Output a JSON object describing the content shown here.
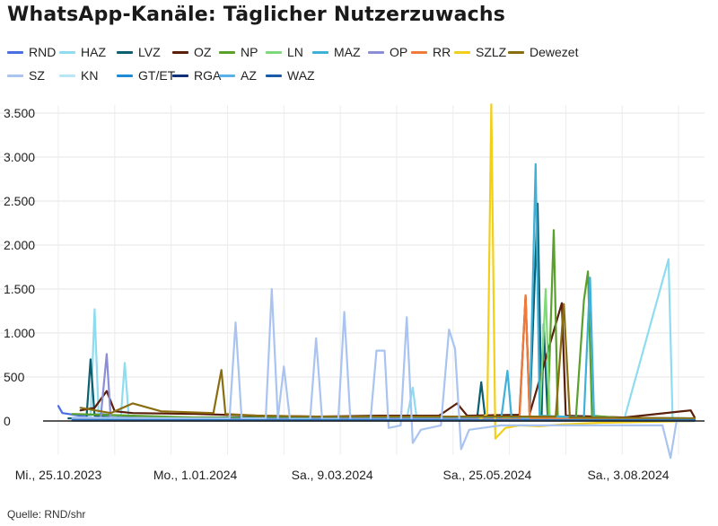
{
  "title": "WhatsApp-Kanäle: Täglicher Nutzerzuwachs",
  "source": "Quelle: RND/shr",
  "chart_data": {
    "type": "line",
    "title": "WhatsApp-Kanäle: Täglicher Nutzerzuwachs",
    "xlabel": "",
    "ylabel": "",
    "x_range": [
      "2023-10-25",
      "2024-09-05"
    ],
    "ylim": [
      -300,
      3600
    ],
    "y_ticks": [
      0,
      500,
      1000,
      1500,
      2000,
      2500,
      3000,
      3500
    ],
    "y_tick_labels": [
      "0",
      "500",
      "1.000",
      "1.500",
      "2.000",
      "2.500",
      "3.000",
      "3.500"
    ],
    "x_ticks": [
      "2023-10-25",
      "2024-01-01",
      "2024-03-09",
      "2024-05-25",
      "2024-08-03"
    ],
    "x_tick_labels": [
      "Mi., 25.10.2023",
      "Mo., 1.01.2024",
      "Sa., 9.03.2024",
      "Sa., 25.05.2024",
      "Sa., 3.08.2024"
    ],
    "grid": true,
    "legend": "top",
    "series": [
      {
        "name": "RND",
        "color": "#4a6fe3",
        "points": [
          [
            "2023-10-25",
            170
          ],
          [
            "2023-10-27",
            90
          ],
          [
            "2023-11-05",
            60
          ],
          [
            "2023-11-15",
            80
          ],
          [
            "2023-12-01",
            40
          ],
          [
            "2024-01-01",
            30
          ],
          [
            "2024-02-01",
            20
          ],
          [
            "2024-03-01",
            15
          ],
          [
            "2024-04-01",
            10
          ],
          [
            "2024-05-01",
            10
          ],
          [
            "2024-06-01",
            10
          ],
          [
            "2024-07-01",
            8
          ],
          [
            "2024-08-01",
            8
          ],
          [
            "2024-09-05",
            5
          ]
        ]
      },
      {
        "name": "HAZ",
        "color": "#8fdcf0",
        "points": [
          [
            "2023-11-01",
            20
          ],
          [
            "2023-11-10",
            30
          ],
          [
            "2023-11-12",
            1270
          ],
          [
            "2023-11-14",
            60
          ],
          [
            "2023-11-25",
            40
          ],
          [
            "2023-11-27",
            660
          ],
          [
            "2023-11-29",
            40
          ],
          [
            "2024-01-01",
            30
          ],
          [
            "2024-04-15",
            20
          ],
          [
            "2024-04-18",
            380
          ],
          [
            "2024-04-20",
            20
          ],
          [
            "2024-06-01",
            20
          ],
          [
            "2024-08-01",
            20
          ],
          [
            "2024-08-23",
            1840
          ],
          [
            "2024-08-25",
            30
          ],
          [
            "2024-09-05",
            20
          ]
        ]
      },
      {
        "name": "LVZ",
        "color": "#0b5f6e",
        "points": [
          [
            "2023-10-30",
            30
          ],
          [
            "2023-11-08",
            40
          ],
          [
            "2023-11-10",
            700
          ],
          [
            "2023-11-12",
            60
          ],
          [
            "2023-11-20",
            40
          ],
          [
            "2024-01-01",
            40
          ],
          [
            "2024-05-20",
            40
          ],
          [
            "2024-05-22",
            440
          ],
          [
            "2024-05-24",
            30
          ],
          [
            "2024-06-15",
            50
          ],
          [
            "2024-06-19",
            2470
          ],
          [
            "2024-06-21",
            60
          ],
          [
            "2024-06-22",
            1100
          ],
          [
            "2024-06-24",
            40
          ],
          [
            "2024-09-05",
            30
          ]
        ]
      },
      {
        "name": "OZ",
        "color": "#5a1f0a",
        "points": [
          [
            "2023-11-05",
            120
          ],
          [
            "2023-11-12",
            150
          ],
          [
            "2023-11-18",
            340
          ],
          [
            "2023-11-22",
            110
          ],
          [
            "2023-12-01",
            90
          ],
          [
            "2024-01-01",
            80
          ],
          [
            "2024-02-01",
            60
          ],
          [
            "2024-03-01",
            50
          ],
          [
            "2024-04-01",
            60
          ],
          [
            "2024-05-01",
            60
          ],
          [
            "2024-05-10",
            200
          ],
          [
            "2024-05-15",
            60
          ],
          [
            "2024-06-10",
            70
          ],
          [
            "2024-06-13",
            1420
          ],
          [
            "2024-06-15",
            80
          ],
          [
            "2024-07-01",
            1340
          ],
          [
            "2024-07-03",
            60
          ],
          [
            "2024-08-01",
            40
          ],
          [
            "2024-09-03",
            120
          ],
          [
            "2024-09-05",
            40
          ]
        ]
      },
      {
        "name": "NP",
        "color": "#5aa02c",
        "points": [
          [
            "2023-11-01",
            80
          ],
          [
            "2023-12-01",
            60
          ],
          [
            "2024-01-01",
            40
          ],
          [
            "2024-03-01",
            30
          ],
          [
            "2024-05-01",
            30
          ],
          [
            "2024-06-24",
            40
          ],
          [
            "2024-06-27",
            2170
          ],
          [
            "2024-06-29",
            50
          ],
          [
            "2024-07-08",
            40
          ],
          [
            "2024-07-12",
            1370
          ],
          [
            "2024-07-14",
            1700
          ],
          [
            "2024-07-16",
            60
          ],
          [
            "2024-08-01",
            30
          ],
          [
            "2024-09-05",
            20
          ]
        ]
      },
      {
        "name": "LN",
        "color": "#7fd87a",
        "points": [
          [
            "2023-11-01",
            30
          ],
          [
            "2024-01-01",
            20
          ],
          [
            "2024-06-20",
            30
          ],
          [
            "2024-06-23",
            1500
          ],
          [
            "2024-06-25",
            40
          ],
          [
            "2024-09-05",
            20
          ]
        ]
      },
      {
        "name": "MAZ",
        "color": "#3fb0d8",
        "points": [
          [
            "2023-11-01",
            20
          ],
          [
            "2024-01-01",
            20
          ],
          [
            "2024-06-01",
            40
          ],
          [
            "2024-06-04",
            570
          ],
          [
            "2024-06-06",
            40
          ],
          [
            "2024-06-15",
            50
          ],
          [
            "2024-06-18",
            2920
          ],
          [
            "2024-06-20",
            60
          ],
          [
            "2024-07-12",
            40
          ],
          [
            "2024-07-15",
            1630
          ],
          [
            "2024-07-17",
            40
          ],
          [
            "2024-09-05",
            20
          ]
        ]
      },
      {
        "name": "OP",
        "color": "#8a8ed6",
        "points": [
          [
            "2023-11-01",
            20
          ],
          [
            "2023-11-15",
            30
          ],
          [
            "2023-11-18",
            760
          ],
          [
            "2023-11-20",
            40
          ],
          [
            "2024-01-01",
            20
          ],
          [
            "2024-09-05",
            20
          ]
        ]
      },
      {
        "name": "RR",
        "color": "#f07a3a",
        "points": [
          [
            "2024-05-01",
            10
          ],
          [
            "2024-06-10",
            20
          ],
          [
            "2024-06-13",
            1430
          ],
          [
            "2024-06-15",
            30
          ],
          [
            "2024-09-05",
            10
          ]
        ]
      },
      {
        "name": "SZLZ",
        "color": "#f2cf1a",
        "points": [
          [
            "2024-05-20",
            0
          ],
          [
            "2024-05-25",
            80
          ],
          [
            "2024-05-27",
            3600
          ],
          [
            "2024-05-29",
            -200
          ],
          [
            "2024-06-03",
            -80
          ],
          [
            "2024-06-10",
            -50
          ],
          [
            "2024-06-20",
            -60
          ],
          [
            "2024-07-01",
            -40
          ],
          [
            "2024-07-20",
            -20
          ],
          [
            "2024-09-05",
            0
          ]
        ]
      },
      {
        "name": "Dewezet",
        "color": "#8a6d0f",
        "points": [
          [
            "2023-11-05",
            150
          ],
          [
            "2023-11-20",
            90
          ],
          [
            "2023-12-01",
            200
          ],
          [
            "2023-12-15",
            110
          ],
          [
            "2024-01-10",
            90
          ],
          [
            "2024-01-14",
            580
          ],
          [
            "2024-01-16",
            80
          ],
          [
            "2024-02-01",
            60
          ],
          [
            "2024-03-01",
            50
          ],
          [
            "2024-05-01",
            50
          ],
          [
            "2024-06-28",
            50
          ],
          [
            "2024-07-02",
            1330
          ],
          [
            "2024-07-05",
            40
          ],
          [
            "2024-09-05",
            30
          ]
        ]
      },
      {
        "name": "SZ",
        "color": "#a9c4f0",
        "points": [
          [
            "2023-11-01",
            40
          ],
          [
            "2024-01-01",
            30
          ],
          [
            "2024-01-18",
            30
          ],
          [
            "2024-01-21",
            1120
          ],
          [
            "2024-01-24",
            30
          ],
          [
            "2024-02-05",
            30
          ],
          [
            "2024-02-08",
            1500
          ],
          [
            "2024-02-11",
            30
          ],
          [
            "2024-02-14",
            620
          ],
          [
            "2024-02-17",
            20
          ],
          [
            "2024-02-27",
            20
          ],
          [
            "2024-03-01",
            940
          ],
          [
            "2024-03-04",
            20
          ],
          [
            "2024-03-12",
            20
          ],
          [
            "2024-03-15",
            1240
          ],
          [
            "2024-03-18",
            10
          ],
          [
            "2024-03-28",
            10
          ],
          [
            "2024-03-31",
            800
          ],
          [
            "2024-04-04",
            800
          ],
          [
            "2024-04-06",
            -80
          ],
          [
            "2024-04-12",
            -50
          ],
          [
            "2024-04-15",
            1180
          ],
          [
            "2024-04-18",
            -250
          ],
          [
            "2024-04-22",
            -100
          ],
          [
            "2024-05-02",
            -50
          ],
          [
            "2024-05-06",
            1040
          ],
          [
            "2024-05-09",
            820
          ],
          [
            "2024-05-12",
            -320
          ],
          [
            "2024-05-16",
            -100
          ],
          [
            "2024-06-01",
            -50
          ],
          [
            "2024-07-01",
            -50
          ],
          [
            "2024-08-20",
            -50
          ],
          [
            "2024-08-24",
            -420
          ],
          [
            "2024-08-27",
            0
          ],
          [
            "2024-09-05",
            0
          ]
        ]
      },
      {
        "name": "KN",
        "color": "#b8e6f7",
        "points": [
          [
            "2023-11-01",
            10
          ],
          [
            "2024-09-05",
            10
          ]
        ]
      },
      {
        "name": "GT/ET",
        "color": "#1f8ad8",
        "points": [
          [
            "2023-11-01",
            10
          ],
          [
            "2024-09-05",
            10
          ]
        ]
      },
      {
        "name": "RGA",
        "color": "#0d2f7a",
        "points": [
          [
            "2023-11-01",
            5
          ],
          [
            "2024-09-05",
            5
          ]
        ]
      },
      {
        "name": "AZ",
        "color": "#5ab0e8",
        "points": [
          [
            "2023-11-01",
            8
          ],
          [
            "2024-09-05",
            8
          ]
        ]
      },
      {
        "name": "WAZ",
        "color": "#1a5aa8",
        "points": [
          [
            "2023-11-01",
            5
          ],
          [
            "2024-09-05",
            5
          ]
        ]
      }
    ]
  }
}
